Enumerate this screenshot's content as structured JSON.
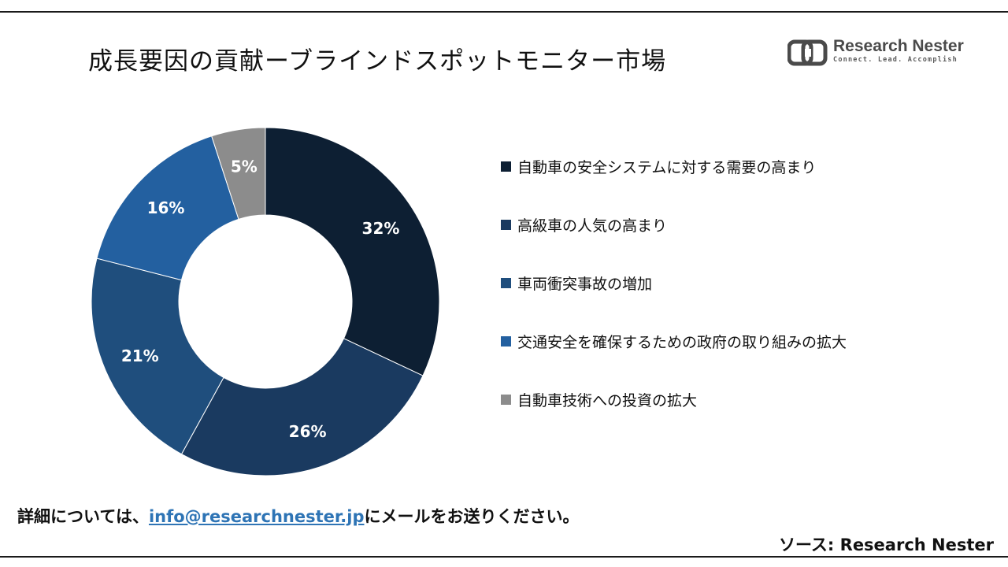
{
  "title": "成長要因の貢献ーブラインドスポットモニター市場",
  "logo": {
    "name": "Research Nester",
    "tagline": "Connect. Lead. Accomplish"
  },
  "chart_data": {
    "type": "pie",
    "variant": "donut",
    "title": "",
    "legend_position": "right",
    "categories": [
      "自動車の安全システムに対する需要の高まり",
      "高級車の人気の高まり",
      "車両衝突事故の増加",
      "交通安全を確保するための政府の取り組みの拡大",
      "自動車技術への投資の拡大"
    ],
    "values": [
      32,
      26,
      21,
      16,
      5
    ],
    "labels": [
      "32%",
      "26%",
      "21%",
      "16%",
      "5%"
    ],
    "colors": [
      "#0d1f33",
      "#1a3a60",
      "#1f4e7d",
      "#2360a0",
      "#8c8c8c"
    ]
  },
  "footer": {
    "prefix": "詳細については、",
    "email": "info@researchnester.jp",
    "suffix": "にメールをお送りください。"
  },
  "source": "ソース: Research Nester"
}
